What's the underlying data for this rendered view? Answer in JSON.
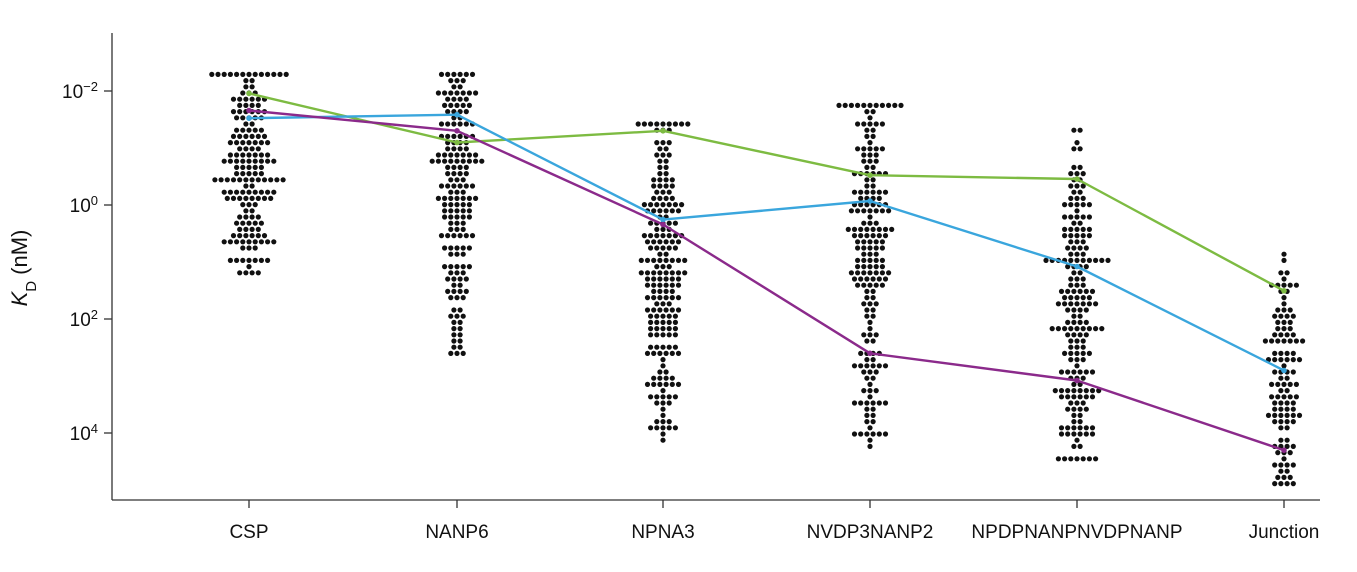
{
  "chart_data": {
    "type": "scatter",
    "y_scale": "log-reversed",
    "ylabel": {
      "main": "K",
      "sub": "D",
      "unit": "(nM)"
    },
    "y_ticks": [
      {
        "value": 0.01,
        "base": "10",
        "exp": "−2"
      },
      {
        "value": 1,
        "base": "10",
        "exp": "0"
      },
      {
        "value": 100,
        "base": "10",
        "exp": "2"
      },
      {
        "value": 10000,
        "base": "10",
        "exp": "4"
      }
    ],
    "ylim": [
      0.001,
      100000
    ],
    "categories": [
      "CSP",
      "NANP6",
      "NPNA3",
      "NVDP3NANP2",
      "NPDPNANPNVDPNANP",
      "Junction"
    ],
    "colors": {
      "points": "#111111",
      "green": "#7dbb42",
      "blue": "#3aa6dd",
      "purple": "#8b2a8b",
      "axis": "#333333"
    },
    "points": [
      {
        "category": "CSP",
        "min_log": -2.3,
        "max_log": 1.3,
        "n": 170,
        "center_log": -0.8
      },
      {
        "category": "NANP6",
        "min_log": -2.3,
        "max_log": 2.6,
        "n": 170,
        "center_log": -0.3
      },
      {
        "category": "NPNA3",
        "min_log": -1.4,
        "max_log": 4.1,
        "n": 200,
        "center_log": 1.2
      },
      {
        "category": "NVDP3NANP2",
        "min_log": -1.8,
        "max_log": 4.3,
        "n": 190,
        "center_log": 0.5
      },
      {
        "category": "NPDPNANPNVDPNANP",
        "min_log": -1.3,
        "max_log": 4.4,
        "n": 190,
        "center_log": 2.0
      },
      {
        "category": "Junction",
        "min_log": 0.8,
        "max_log": 4.9,
        "n": 110,
        "center_log": 3.4
      }
    ],
    "series": [
      {
        "color": "green",
        "values": [
          0.011,
          0.08,
          0.05,
          0.3,
          0.35,
          32
        ]
      },
      {
        "color": "blue",
        "values": [
          0.03,
          0.026,
          1.8,
          0.85,
          12,
          800
        ]
      },
      {
        "color": "purple",
        "values": [
          0.022,
          0.05,
          2.2,
          400,
          1200,
          20000
        ]
      }
    ]
  }
}
